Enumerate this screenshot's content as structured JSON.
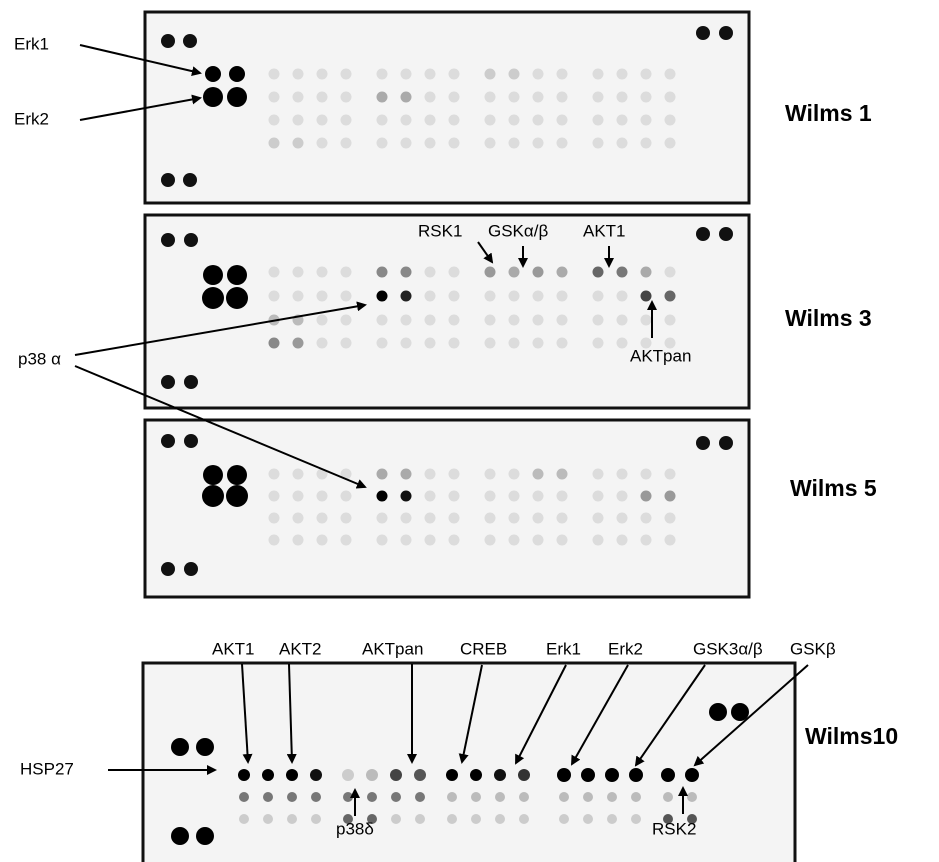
{
  "panels": [
    {
      "label": "Wilms 1"
    },
    {
      "label": "Wilms 3"
    },
    {
      "label": "Wilms 5"
    },
    {
      "label": "Wilms10"
    }
  ],
  "annotations": {
    "wilms1": {
      "erk1": "Erk1",
      "erk2": "Erk2"
    },
    "wilms3": {
      "rsk1": "RSK1",
      "gsk": "GSKα/β",
      "akt1": "AKT1",
      "aktpan": "AKTpan",
      "p38": "p38 α"
    },
    "wilms10": {
      "akt1": "AKT1",
      "akt2": "AKT2",
      "aktpan": "AKTpan",
      "creb": "CREB",
      "erk1": "Erk1",
      "erk2": "Erk2",
      "gsk3": "GSK3α/β",
      "gskb": "GSKβ",
      "hsp27": "HSP27",
      "p38d": "p38δ",
      "rsk2": "RSK2"
    }
  }
}
